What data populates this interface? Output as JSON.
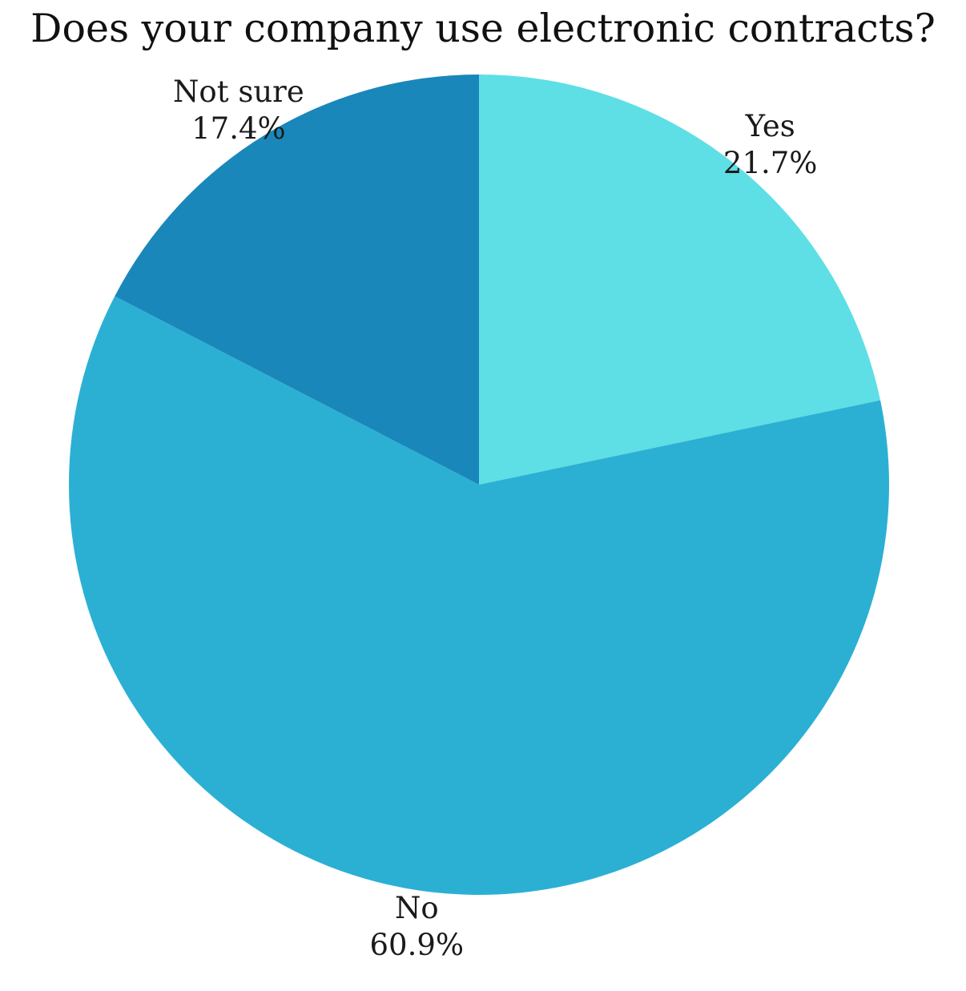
{
  "chart_data": {
    "type": "pie",
    "title": "Does your company use electronic contracts?",
    "start_angle_deg": 0,
    "direction": "clockwise",
    "slices": [
      {
        "label": "Yes",
        "value": 21.7,
        "value_label": "21.7%",
        "color": "#5ddfe5"
      },
      {
        "label": "No",
        "value": 60.9,
        "value_label": "60.9%",
        "color": "#2bb0d4"
      },
      {
        "label": "Not sure",
        "value": 17.4,
        "value_label": "17.4%",
        "color": "#1a87ba"
      }
    ]
  }
}
